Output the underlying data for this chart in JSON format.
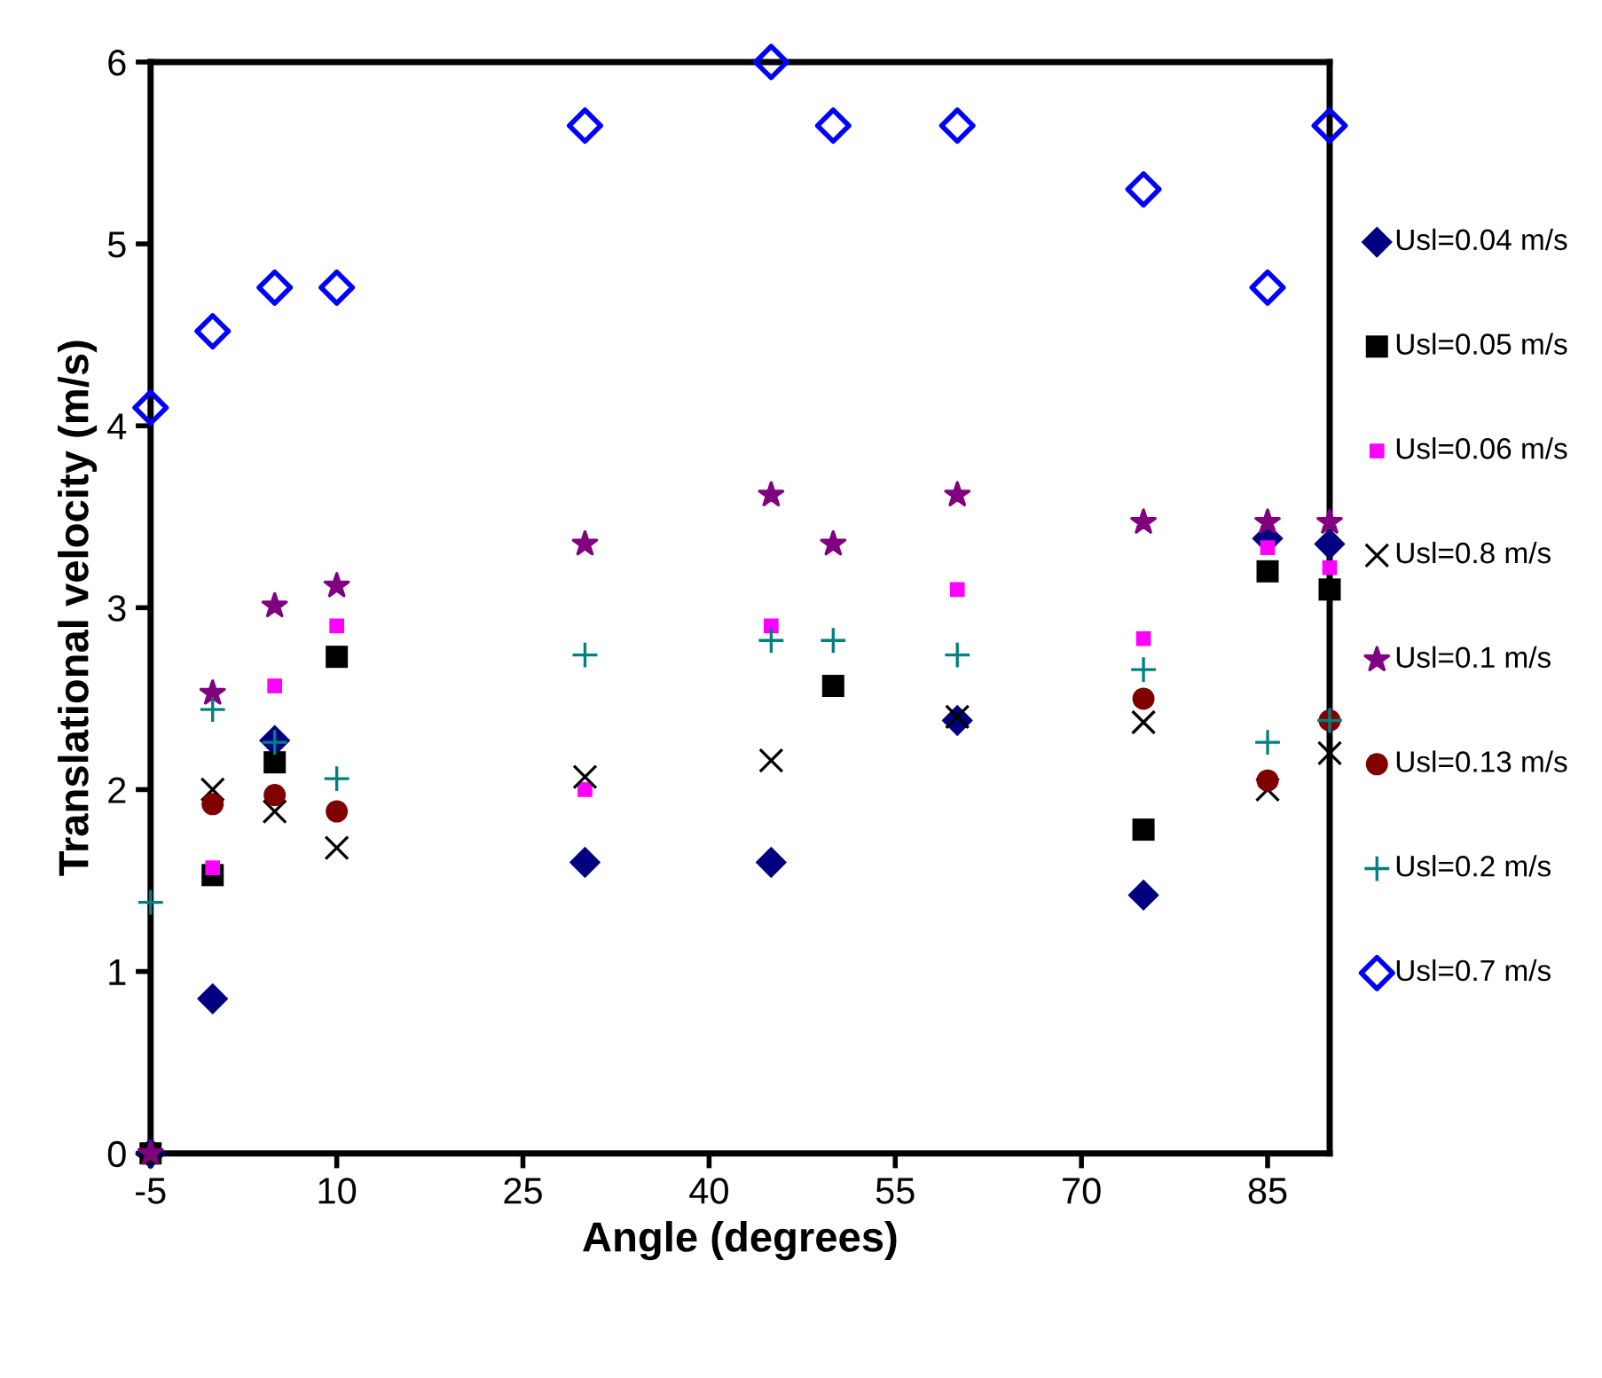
{
  "chart_data": {
    "type": "scatter",
    "xlabel": "Angle (degrees)",
    "ylabel": "Translational velocity (m/s)",
    "x": [
      -5,
      0,
      5,
      10,
      30,
      45,
      50,
      60,
      75,
      85,
      90
    ],
    "xlim": [
      -5,
      90
    ],
    "xticks": [
      -5,
      10,
      25,
      40,
      55,
      70,
      85
    ],
    "ylim": [
      0,
      6
    ],
    "yticks": [
      0,
      1,
      2,
      3,
      4,
      5,
      6
    ],
    "grid": false,
    "legend": "right",
    "series": [
      {
        "name": "Usl=0.04 m/s",
        "color": "#000080",
        "marker": "diamond",
        "values": [
          0,
          0.85,
          2.27,
          null,
          1.6,
          1.6,
          null,
          2.38,
          1.42,
          3.38,
          3.35
        ]
      },
      {
        "name": "Usl=0.05 m/s",
        "color": "#000000",
        "marker": "square",
        "values": [
          0,
          1.53,
          2.15,
          2.73,
          null,
          null,
          2.57,
          null,
          1.78,
          3.2,
          3.1
        ]
      },
      {
        "name": "Usl=0.06 m/s",
        "color": "#ff00ff",
        "marker": "square",
        "values": [
          null,
          1.57,
          2.57,
          2.9,
          2.0,
          2.9,
          null,
          3.1,
          2.83,
          3.33,
          3.22
        ]
      },
      {
        "name": "Usl=0.8 m/s",
        "color": "#000000",
        "marker": "cross",
        "values": [
          null,
          2.0,
          1.88,
          1.68,
          2.07,
          2.16,
          null,
          2.4,
          2.37,
          2.0,
          2.2
        ]
      },
      {
        "name": "Usl=0.1 m/s",
        "color": "#800080",
        "marker": "star",
        "values": [
          0,
          2.53,
          3.01,
          3.12,
          3.35,
          3.62,
          3.35,
          3.62,
          3.47,
          3.47,
          3.47
        ]
      },
      {
        "name": "Usl=0.13 m/s",
        "color": "#800000",
        "marker": "circle",
        "values": [
          null,
          1.92,
          1.97,
          1.88,
          null,
          null,
          null,
          null,
          2.5,
          2.05,
          2.38
        ]
      },
      {
        "name": "Usl=0.2 m/s",
        "color": "#008080",
        "marker": "plus",
        "values": [
          1.38,
          2.44,
          2.26,
          2.06,
          2.74,
          2.82,
          2.82,
          2.74,
          2.66,
          2.26,
          2.38
        ]
      },
      {
        "name": "Usl=0.7 m/s",
        "color": "#0000ff",
        "marker": "diamond",
        "values": [
          4.1,
          4.52,
          4.76,
          4.76,
          5.65,
          6.0,
          5.65,
          5.65,
          5.3,
          4.76,
          5.65
        ]
      }
    ]
  }
}
